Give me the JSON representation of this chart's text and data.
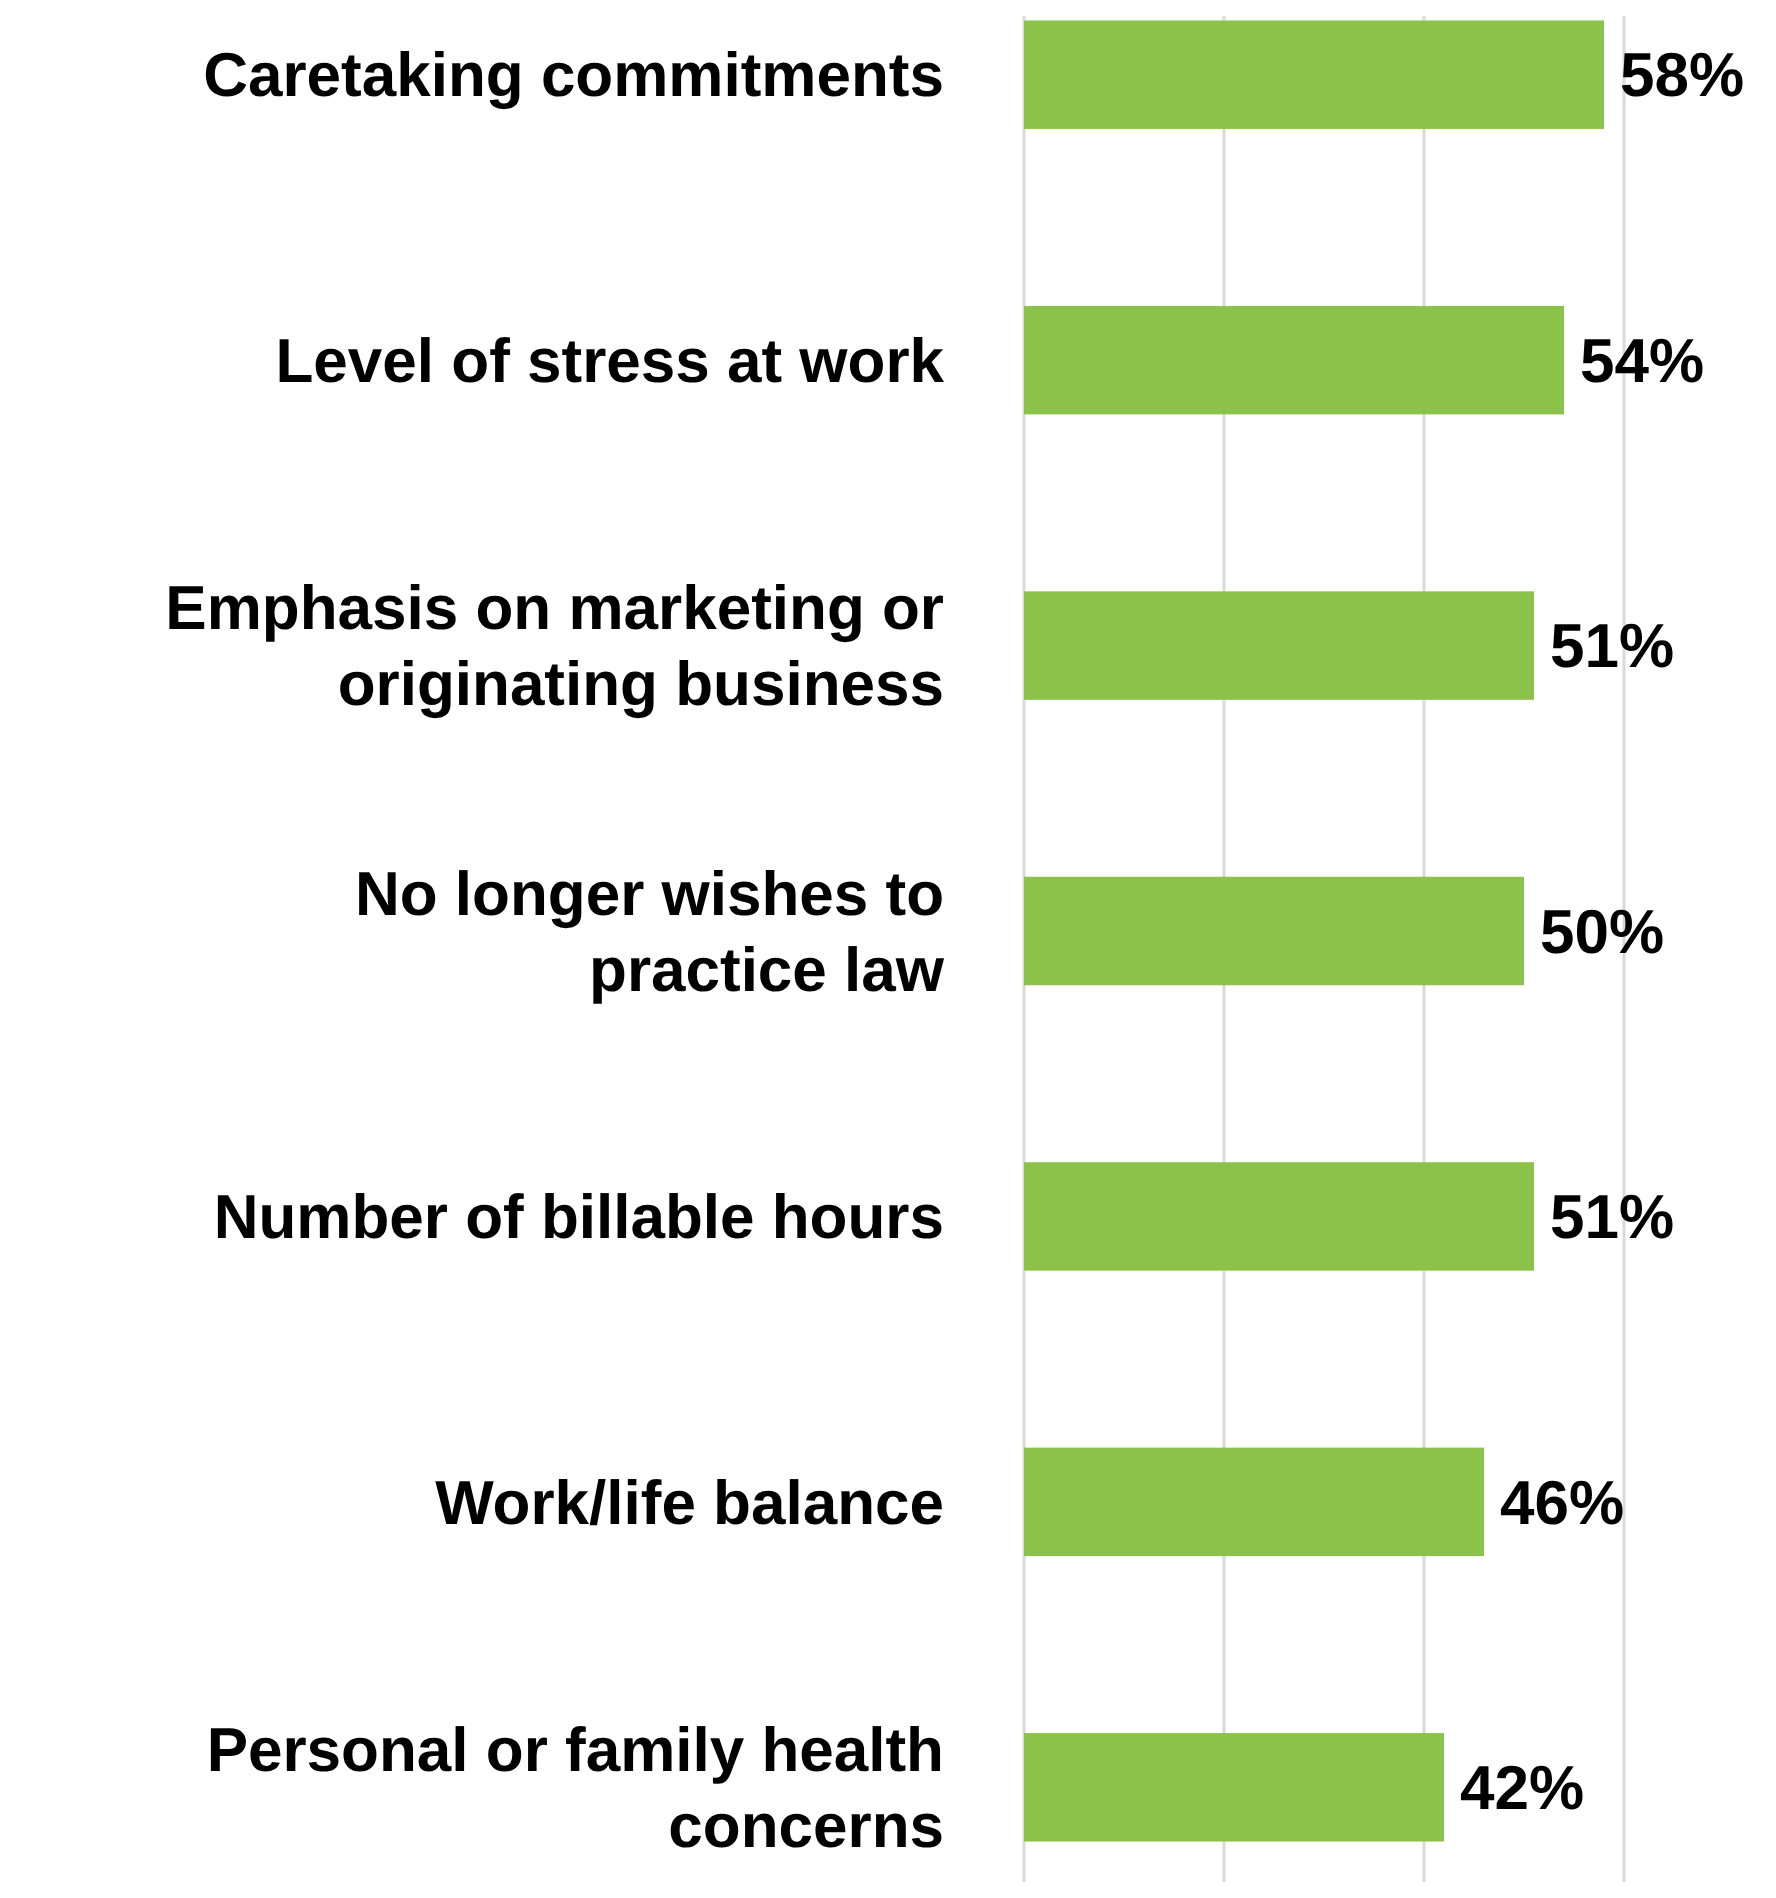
{
  "chart_data": {
    "type": "bar",
    "orientation": "horizontal",
    "categories": [
      "Caretaking commitments",
      "Level of stress at work",
      "Emphasis on marketing or originating business",
      "No longer wishes to practice law",
      "Number of billable hours",
      "Work/life balance",
      "Personal or family health concerns"
    ],
    "values": [
      58,
      54,
      51,
      50,
      51,
      46,
      42
    ],
    "value_labels": [
      "58%",
      "54%",
      "51%",
      "50%",
      "51%",
      "46%",
      "42%"
    ],
    "color": "#8bc34a",
    "xlim": [
      0,
      60
    ],
    "xticks": [
      {
        "value": 0,
        "label": null
      },
      {
        "value": 20,
        "label": null
      },
      {
        "value": 40,
        "label": null
      },
      {
        "value": 60,
        "label": null
      }
    ],
    "grid": "x"
  }
}
